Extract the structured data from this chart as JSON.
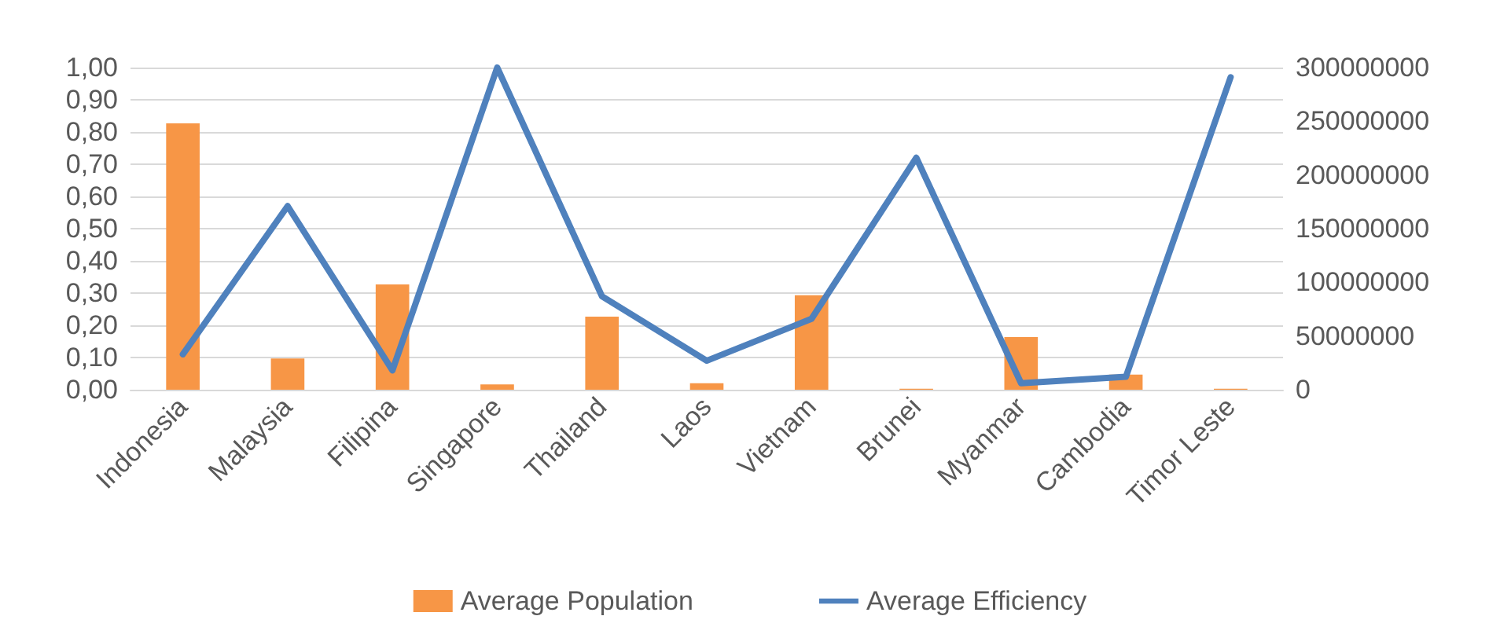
{
  "chart_data": {
    "type": "bar",
    "categories": [
      "Indonesia",
      "Malaysia",
      "Filipina",
      "Singapore",
      "Thailand",
      "Laos",
      "Vietnam",
      "Brunei",
      "Myanmar",
      "Cambodia",
      "Timor Leste"
    ],
    "series": [
      {
        "name": "Average Population",
        "axis": "y2",
        "color": "#f79646",
        "values": [
          248000000,
          29000000,
          98000000,
          5000000,
          68000000,
          6000000,
          88000000,
          1000000,
          49000000,
          14000000,
          1000000
        ]
      },
      {
        "name": "Average Efficiency",
        "type": "line",
        "axis": "y",
        "color": "#4f81bd",
        "values": [
          0.11,
          0.57,
          0.06,
          1.0,
          0.29,
          0.09,
          0.22,
          0.72,
          0.02,
          0.04,
          0.97
        ]
      }
    ],
    "ylim": [
      0,
      1
    ],
    "yticks": [
      {
        "value": 0,
        "label": "0,00"
      },
      {
        "value": 0.1,
        "label": "0,10"
      },
      {
        "value": 0.2,
        "label": "0,20"
      },
      {
        "value": 0.3,
        "label": "0,30"
      },
      {
        "value": 0.4,
        "label": "0,40"
      },
      {
        "value": 0.5,
        "label": "0,50"
      },
      {
        "value": 0.6,
        "label": "0,60"
      },
      {
        "value": 0.7,
        "label": "0,70"
      },
      {
        "value": 0.8,
        "label": "0,80"
      },
      {
        "value": 0.9,
        "label": "0,90"
      },
      {
        "value": 1,
        "label": "1,00"
      }
    ],
    "y2lim": [
      0,
      300000000
    ],
    "y2ticks": [
      0,
      50000000,
      100000000,
      150000000,
      200000000,
      250000000,
      300000000
    ],
    "grid": "y",
    "legend": "bottom",
    "marker": "none",
    "line_style": "solid"
  }
}
